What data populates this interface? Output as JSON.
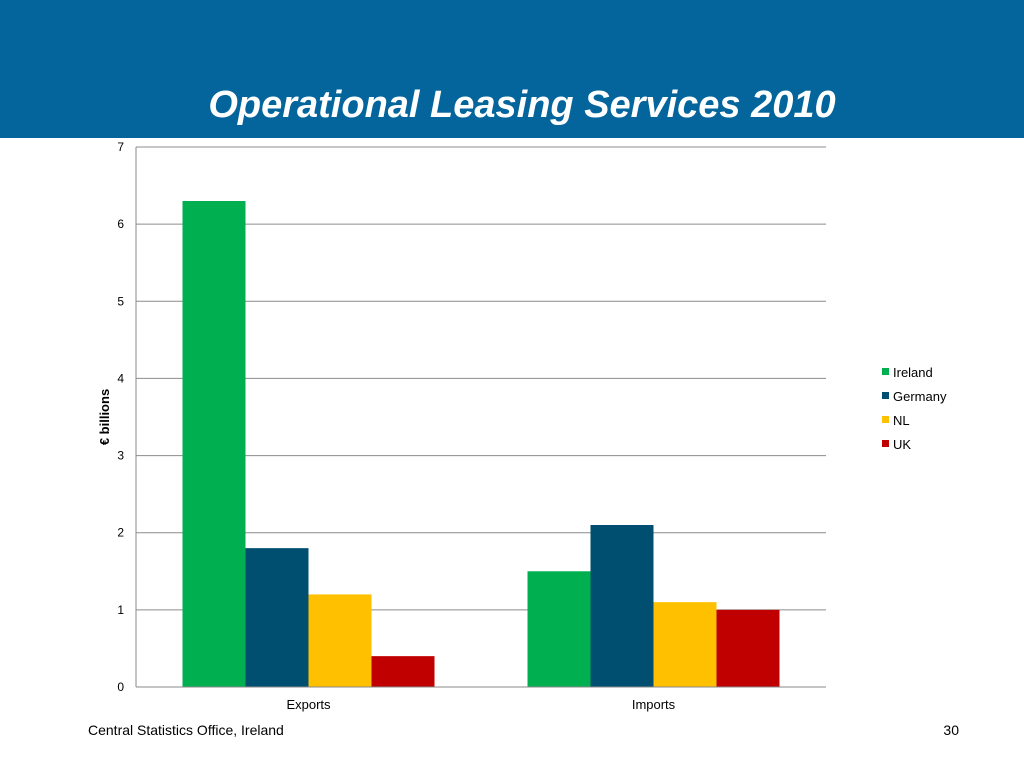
{
  "slide": {
    "title": "Operational Leasing Services 2010",
    "footer_source": "Central Statistics Office, Ireland",
    "page_number": "30"
  },
  "colors": {
    "header_band": "#03659c",
    "Ireland": "#00b050",
    "Germany": "#004f71",
    "NL": "#ffc000",
    "UK": "#c00000"
  },
  "chart_data": {
    "type": "bar",
    "title": "",
    "xlabel": "",
    "ylabel": "€ billions",
    "ylim": [
      0,
      7
    ],
    "yticks": [
      "0",
      "1",
      "2",
      "3",
      "4",
      "5",
      "6",
      "7"
    ],
    "grid": true,
    "legend_position": "right",
    "categories": [
      "Exports",
      "Imports"
    ],
    "series": [
      {
        "name": "Ireland",
        "values": [
          6.3,
          1.5
        ]
      },
      {
        "name": "Germany",
        "values": [
          1.8,
          2.1
        ]
      },
      {
        "name": "NL",
        "values": [
          1.2,
          1.1
        ]
      },
      {
        "name": "UK",
        "values": [
          0.4,
          1.0
        ]
      }
    ]
  }
}
